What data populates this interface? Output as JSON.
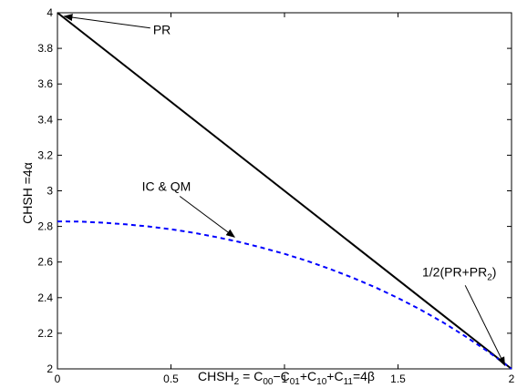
{
  "chart_data": {
    "type": "line",
    "xlabel_parts": [
      {
        "t": "CHSH"
      },
      {
        "t": "2",
        "sub": true
      },
      {
        "t": " = C"
      },
      {
        "t": "00",
        "sub": true
      },
      {
        "t": "−C"
      },
      {
        "t": "01",
        "sub": true
      },
      {
        "t": "+C"
      },
      {
        "t": "10",
        "sub": true
      },
      {
        "t": "+C"
      },
      {
        "t": "11",
        "sub": true
      },
      {
        "t": "=4β"
      }
    ],
    "ylabel": "CHSH =4α",
    "xlim": [
      0,
      2
    ],
    "ylim": [
      2,
      4
    ],
    "x_ticks": [
      0,
      0.5,
      1,
      1.5,
      2
    ],
    "x_tick_labels": [
      "0",
      "0.5",
      "1",
      "1.5",
      "2"
    ],
    "y_ticks": [
      2,
      2.2,
      2.4,
      2.6,
      2.8,
      3,
      3.2,
      3.4,
      3.6,
      3.8,
      4
    ],
    "y_tick_labels": [
      "2",
      "2.2",
      "2.4",
      "2.6",
      "2.8",
      "3",
      "3.2",
      "3.4",
      "3.6",
      "3.8",
      "4"
    ],
    "grid": false,
    "series": [
      {
        "name": "PR",
        "color": "#000000",
        "style": "solid",
        "x": [
          0,
          2
        ],
        "y": [
          4,
          2
        ]
      },
      {
        "name": "IC & QM",
        "color": "#0000ff",
        "style": "dashed",
        "x": [
          0,
          0.1,
          0.2,
          0.3,
          0.4,
          0.5,
          0.6,
          0.7,
          0.8,
          0.9,
          1.0,
          1.1,
          1.2,
          1.3,
          1.4,
          1.5,
          1.6,
          1.7,
          1.8,
          1.9,
          2.0
        ],
        "y": [
          2.828,
          2.827,
          2.821,
          2.812,
          2.8,
          2.784,
          2.764,
          2.74,
          2.713,
          2.681,
          2.646,
          2.606,
          2.561,
          2.512,
          2.458,
          2.398,
          2.332,
          2.26,
          2.18,
          2.094,
          2.0
        ]
      }
    ],
    "annotations": [
      {
        "text": "PR",
        "tx": 0.46,
        "ty": 3.88,
        "ax": 0.03,
        "ay": 3.98
      },
      {
        "text": "IC & QM",
        "tx": 0.48,
        "ty": 3.0,
        "ax": 0.78,
        "ay": 2.74
      },
      {
        "text": "1/2(PR+PR",
        "sub": "2",
        "tail": ")",
        "tx": 1.77,
        "ty": 2.52,
        "ax": 1.97,
        "ay": 2.02
      }
    ]
  }
}
